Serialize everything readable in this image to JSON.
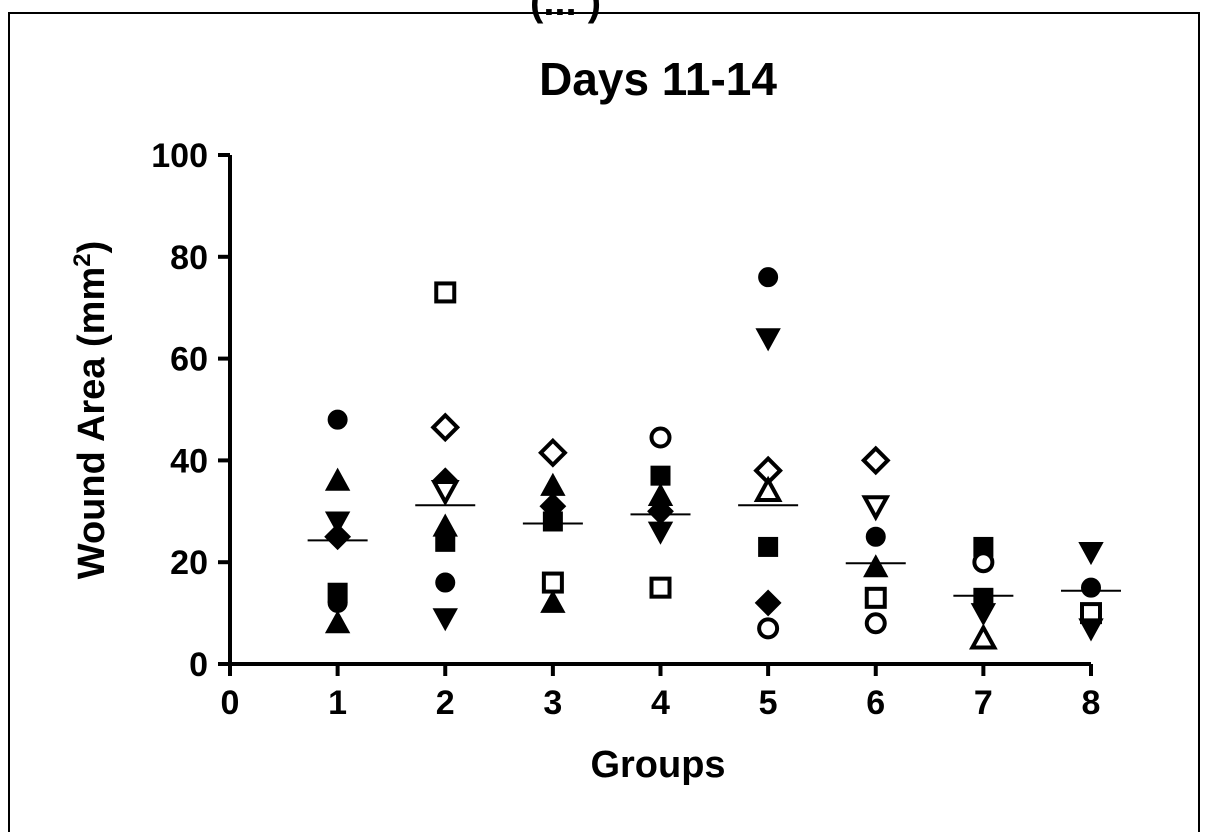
{
  "page": {
    "top_caption": "(... )"
  },
  "chart_data": {
    "type": "scatter",
    "title": "Days 11-14",
    "xlabel": "Groups",
    "ylabel": "Wound Area (mm",
    "ylabel_sup": "2",
    "ylabel_end": ")",
    "xlim": [
      0,
      8
    ],
    "ylim": [
      0,
      100
    ],
    "x_ticks": [
      0,
      1,
      2,
      3,
      4,
      5,
      6,
      7,
      8
    ],
    "y_ticks": [
      0,
      20,
      40,
      60,
      80,
      100
    ],
    "grid": false,
    "legend": "none",
    "colors": {
      "marker": "#000000",
      "background": "#ffffff"
    },
    "points": [
      {
        "x": 1,
        "y": 48,
        "marker": "circle-filled"
      },
      {
        "x": 1,
        "y": 36,
        "marker": "triangle-up-filled"
      },
      {
        "x": 1,
        "y": 28,
        "marker": "triangle-down-filled"
      },
      {
        "x": 1,
        "y": 25,
        "marker": "diamond-filled"
      },
      {
        "x": 1,
        "y": 14,
        "marker": "square-filled"
      },
      {
        "x": 1,
        "y": 12,
        "marker": "circle-filled"
      },
      {
        "x": 1,
        "y": 8,
        "marker": "triangle-up-filled"
      },
      {
        "x": 2,
        "y": 73,
        "marker": "square-open"
      },
      {
        "x": 2,
        "y": 46.5,
        "marker": "diamond-open"
      },
      {
        "x": 2,
        "y": 36,
        "marker": "diamond-filled"
      },
      {
        "x": 2,
        "y": 34,
        "marker": "triangle-down-open"
      },
      {
        "x": 2,
        "y": 27,
        "marker": "triangle-up-filled"
      },
      {
        "x": 2,
        "y": 24,
        "marker": "square-filled"
      },
      {
        "x": 2,
        "y": 16,
        "marker": "circle-filled"
      },
      {
        "x": 2,
        "y": 9,
        "marker": "triangle-down-filled"
      },
      {
        "x": 3,
        "y": 41.5,
        "marker": "diamond-open"
      },
      {
        "x": 3,
        "y": 35,
        "marker": "triangle-up-filled"
      },
      {
        "x": 3,
        "y": 31,
        "marker": "diamond-filled"
      },
      {
        "x": 3,
        "y": 28,
        "marker": "square-filled"
      },
      {
        "x": 3,
        "y": 16,
        "marker": "square-open"
      },
      {
        "x": 3,
        "y": 12,
        "marker": "triangle-up-filled"
      },
      {
        "x": 4,
        "y": 44.5,
        "marker": "circle-open"
      },
      {
        "x": 4,
        "y": 37,
        "marker": "square-filled"
      },
      {
        "x": 4,
        "y": 33,
        "marker": "triangle-up-filled"
      },
      {
        "x": 4,
        "y": 30,
        "marker": "diamond-filled"
      },
      {
        "x": 4,
        "y": 26,
        "marker": "triangle-down-filled"
      },
      {
        "x": 4,
        "y": 15,
        "marker": "square-open"
      },
      {
        "x": 5,
        "y": 76,
        "marker": "circle-filled"
      },
      {
        "x": 5,
        "y": 64,
        "marker": "triangle-down-filled"
      },
      {
        "x": 5,
        "y": 38,
        "marker": "diamond-open"
      },
      {
        "x": 5,
        "y": 34,
        "marker": "triangle-up-open"
      },
      {
        "x": 5,
        "y": 23,
        "marker": "square-filled"
      },
      {
        "x": 5,
        "y": 12,
        "marker": "diamond-filled"
      },
      {
        "x": 5,
        "y": 7,
        "marker": "circle-open"
      },
      {
        "x": 6,
        "y": 40,
        "marker": "diamond-open"
      },
      {
        "x": 6,
        "y": 31,
        "marker": "triangle-down-open"
      },
      {
        "x": 6,
        "y": 25,
        "marker": "circle-filled"
      },
      {
        "x": 6,
        "y": 19,
        "marker": "triangle-up-filled"
      },
      {
        "x": 6,
        "y": 13,
        "marker": "square-open"
      },
      {
        "x": 6,
        "y": 8,
        "marker": "circle-open"
      },
      {
        "x": 7,
        "y": 23,
        "marker": "square-filled"
      },
      {
        "x": 7,
        "y": 20,
        "marker": "circle-open"
      },
      {
        "x": 7,
        "y": 13,
        "marker": "square-filled"
      },
      {
        "x": 7,
        "y": 10,
        "marker": "triangle-down-filled"
      },
      {
        "x": 7,
        "y": 5,
        "marker": "triangle-up-open"
      },
      {
        "x": 8,
        "y": 22,
        "marker": "triangle-down-filled"
      },
      {
        "x": 8,
        "y": 15,
        "marker": "circle-filled"
      },
      {
        "x": 8,
        "y": 10,
        "marker": "square-open"
      },
      {
        "x": 8,
        "y": 7,
        "marker": "triangle-down-filled"
      }
    ],
    "means": [
      {
        "x": 1,
        "y": 24.3
      },
      {
        "x": 2,
        "y": 31.2
      },
      {
        "x": 3,
        "y": 27.6
      },
      {
        "x": 4,
        "y": 29.4
      },
      {
        "x": 5,
        "y": 31.2
      },
      {
        "x": 6,
        "y": 19.8
      },
      {
        "x": 7,
        "y": 13.4
      },
      {
        "x": 8,
        "y": 14.4
      }
    ]
  }
}
